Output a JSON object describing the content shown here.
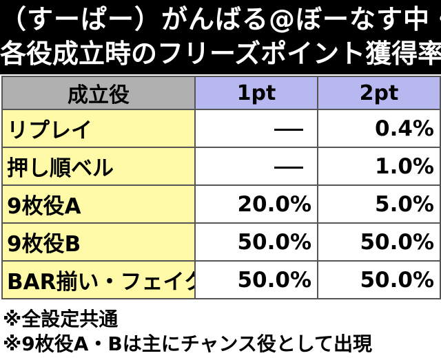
{
  "header": {
    "line1": "（すーぱー）がんばる@ぼーなす中・",
    "line2": "各役成立時のフリーズポイント獲得率"
  },
  "table": {
    "columns": [
      "成立役",
      "1pt",
      "2pt"
    ],
    "rows": [
      {
        "role": "リプレイ",
        "pt1": "",
        "pt1_dash": true,
        "pt2": "0.4%"
      },
      {
        "role": "押し順ベル",
        "pt1": "",
        "pt1_dash": true,
        "pt2": "1.0%"
      },
      {
        "role": "9枚役A",
        "pt1": "20.0%",
        "pt1_dash": false,
        "pt2": "5.0%"
      },
      {
        "role": "9枚役B",
        "pt1": "50.0%",
        "pt1_dash": false,
        "pt2": "50.0%"
      },
      {
        "role": "BAR揃い・フェイク",
        "pt1": "50.0%",
        "pt1_dash": false,
        "pt2": "50.0%"
      }
    ]
  },
  "notes": [
    "※全設定共通",
    "※9枚役A・Bは主にチャンス役として出現"
  ],
  "colors": {
    "header_bg": "#000000",
    "role_header_bg": "#b0b0b0",
    "pt_header_bg": "#b8b8f0",
    "role_cell_bg": "#fffaa8"
  }
}
